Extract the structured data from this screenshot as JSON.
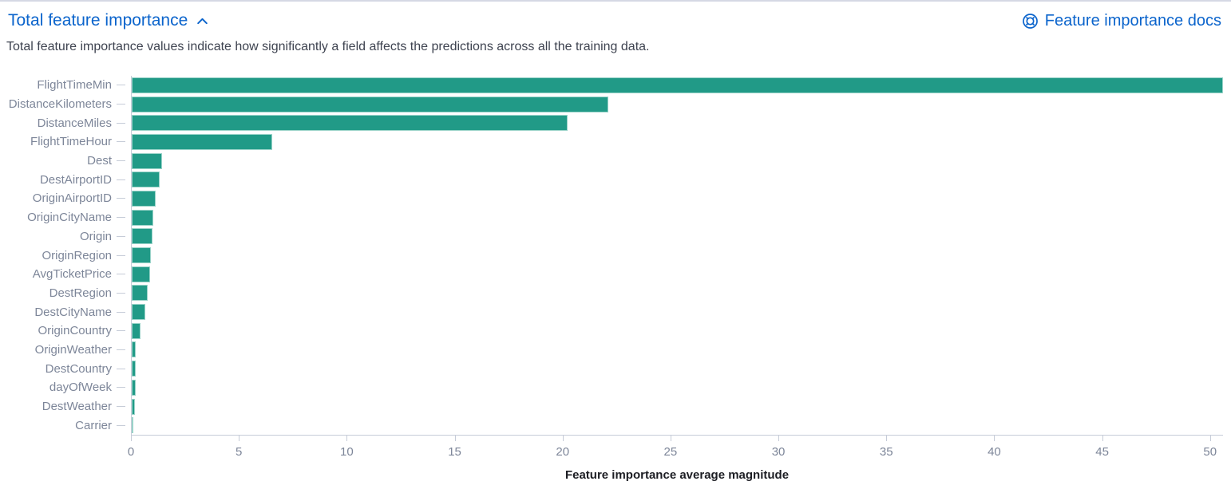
{
  "header": {
    "title": "Total feature importance",
    "docs_link_label": "Feature importance docs"
  },
  "description": "Total feature importance values indicate how significantly a field affects the predictions across all the training data.",
  "colors": {
    "link_blue": "#0b64cc",
    "bar_teal": "#219a87",
    "bar_edge": "#9ad3c9",
    "axis_text": "#7d8699",
    "axis_line": "#c6ccd8",
    "axis_title": "#1c1d23",
    "desc_text": "#3e4350",
    "top_border": "#d5d8e4"
  },
  "icons": {
    "collapse": "chevron-up-icon",
    "docs": "life-ring-icon"
  },
  "chart_data": {
    "type": "bar",
    "orientation": "horizontal",
    "title": "Total feature importance",
    "xlabel": "Feature importance average magnitude",
    "ylabel": "",
    "categories": [
      "FlightTimeMin",
      "DistanceKilometers",
      "DistanceMiles",
      "FlightTimeHour",
      "Dest",
      "DestAirportID",
      "OriginAirportID",
      "OriginCityName",
      "Origin",
      "OriginRegion",
      "AvgTicketPrice",
      "DestRegion",
      "DestCityName",
      "OriginCountry",
      "OriginWeather",
      "DestCountry",
      "dayOfWeek",
      "DestWeather",
      "Carrier"
    ],
    "values": [
      50.6,
      22.1,
      20.2,
      6.5,
      1.4,
      1.3,
      1.1,
      1.0,
      0.95,
      0.9,
      0.85,
      0.75,
      0.63,
      0.4,
      0.2,
      0.18,
      0.17,
      0.14,
      0.05
    ],
    "x_ticks": [
      0,
      5,
      10,
      15,
      20,
      25,
      30,
      35,
      40,
      45,
      50
    ],
    "xlim": [
      0,
      50.6
    ],
    "grid": false,
    "legend": "none",
    "bar_color": "#219a87"
  }
}
